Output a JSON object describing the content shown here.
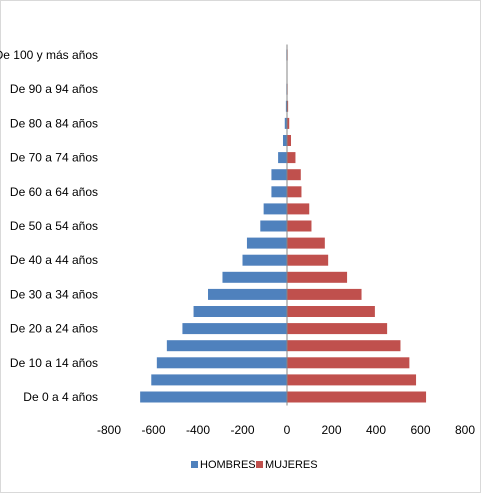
{
  "chart_data": {
    "type": "bar",
    "orientation": "horizontal",
    "categories": [
      "De 0 a 4 años",
      "",
      "De 10 a 14 años",
      "",
      "De 20 a 24 años",
      "",
      "De 30 a 34 años",
      "",
      "De 40 a 44 años",
      "",
      "De 50 a 54 años",
      "",
      "De 60 a 64 años",
      "",
      "De 70 a 74 años",
      "",
      "De 80 a 84 años",
      "",
      "De 90 a 94 años",
      "",
      "De 100 y más años"
    ],
    "series": [
      {
        "name": "HOMBRES",
        "color": "#4f81bd",
        "values": [
          -660,
          -610,
          -585,
          -540,
          -470,
          -420,
          -355,
          -290,
          -200,
          -180,
          -120,
          -105,
          -70,
          -70,
          -40,
          -18,
          -10,
          -5,
          -3,
          -2,
          -3
        ]
      },
      {
        "name": "MUJERES",
        "color": "#c0504d",
        "values": [
          625,
          580,
          550,
          510,
          450,
          395,
          335,
          270,
          185,
          170,
          110,
          100,
          65,
          62,
          38,
          18,
          10,
          5,
          3,
          2,
          3
        ]
      }
    ],
    "xticks": [
      "-800",
      "-600",
      "-400",
      "-200",
      "0",
      "200",
      "400",
      "600",
      "800"
    ],
    "xlim": [
      -800,
      800
    ],
    "legend_position": "bottom",
    "grid": false
  }
}
